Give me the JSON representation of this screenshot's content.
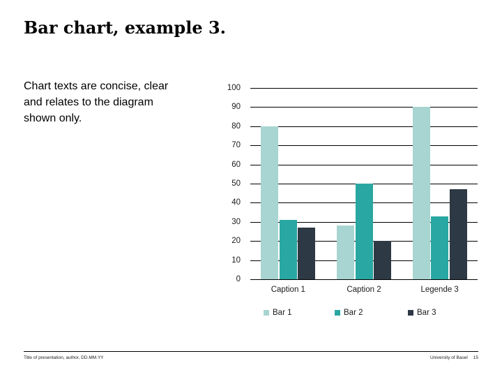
{
  "slide": {
    "title": "Bar chart, example 3.",
    "body_lines": [
      "Chart texts are concise, clear",
      "and relates to the diagram",
      "shown only."
    ]
  },
  "footer": {
    "left_text": "Title of presentation, author, DD.MM.YY",
    "institution": "University of Basel",
    "page_number": "15"
  },
  "chart_data": {
    "type": "bar",
    "title": "",
    "categories": [
      "Caption 1",
      "Caption 2",
      "Legende 3"
    ],
    "series": [
      {
        "name": "Bar 1",
        "color": "#a8d5d1",
        "values": [
          80,
          28,
          90
        ]
      },
      {
        "name": "Bar 2",
        "color": "#29a7a2",
        "values": [
          31,
          50,
          33
        ]
      },
      {
        "name": "Bar 3",
        "color": "#2d3944",
        "values": [
          27,
          20,
          47
        ]
      }
    ],
    "ylim": [
      0,
      100
    ],
    "ytick_step": 10,
    "grid": true,
    "gridline_color": "#000000",
    "legend_position": "bottom"
  }
}
